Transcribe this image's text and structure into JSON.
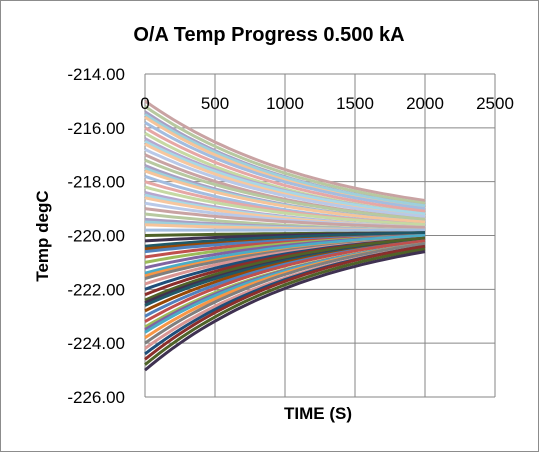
{
  "chart_data": {
    "type": "line",
    "title": "O/A Temp Progress 0.500 kA",
    "xlabel": "TIME (S)",
    "ylabel": "Temp degC",
    "xlim": [
      0,
      2500
    ],
    "ylim": [
      -226,
      -214
    ],
    "x_ticks": [
      0,
      500,
      1000,
      1500,
      2000,
      2500
    ],
    "x_tick_labels": [
      "0",
      "500",
      "1000",
      "1500",
      "2000",
      "2500"
    ],
    "y_ticks": [
      -214,
      -216,
      -218,
      -220,
      -222,
      -224,
      -226
    ],
    "y_tick_labels": [
      "-214.00",
      "-216.00",
      "-218.00",
      "-220.00",
      "-222.00",
      "-224.00",
      "-226.00"
    ],
    "x_axis_position": "top",
    "grid": {
      "horizontal": true,
      "vertical": true
    },
    "legend": "none",
    "series_count": 60,
    "x": [
      0,
      2000
    ],
    "series": [
      {
        "values": [
          -215.0,
          -218.7
        ]
      },
      {
        "values": [
          -215.2,
          -218.8
        ]
      },
      {
        "values": [
          -215.4,
          -218.9
        ]
      },
      {
        "values": [
          -215.6,
          -219.0
        ]
      },
      {
        "values": [
          -215.8,
          -219.0
        ]
      },
      {
        "values": [
          -216.0,
          -219.1
        ]
      },
      {
        "values": [
          -216.2,
          -219.2
        ]
      },
      {
        "values": [
          -216.4,
          -219.2
        ]
      },
      {
        "values": [
          -216.6,
          -219.3
        ]
      },
      {
        "values": [
          -216.8,
          -219.3
        ]
      },
      {
        "values": [
          -217.0,
          -219.4
        ]
      },
      {
        "values": [
          -217.2,
          -219.4
        ]
      },
      {
        "values": [
          -217.4,
          -219.5
        ]
      },
      {
        "values": [
          -217.6,
          -219.5
        ]
      },
      {
        "values": [
          -217.8,
          -219.6
        ]
      },
      {
        "values": [
          -218.0,
          -219.6
        ]
      },
      {
        "values": [
          -218.2,
          -219.6
        ]
      },
      {
        "values": [
          -218.4,
          -219.7
        ]
      },
      {
        "values": [
          -218.6,
          -219.7
        ]
      },
      {
        "values": [
          -218.8,
          -219.7
        ]
      },
      {
        "values": [
          -219.0,
          -219.7
        ]
      },
      {
        "values": [
          -219.2,
          -219.8
        ]
      },
      {
        "values": [
          -219.4,
          -219.8
        ]
      },
      {
        "values": [
          -219.6,
          -219.8
        ]
      },
      {
        "values": [
          -219.8,
          -219.8
        ]
      },
      {
        "values": [
          -220.0,
          -219.9
        ]
      },
      {
        "values": [
          -220.2,
          -219.9
        ]
      },
      {
        "values": [
          -220.4,
          -219.9
        ]
      },
      {
        "values": [
          -220.6,
          -220.0
        ]
      },
      {
        "values": [
          -220.8,
          -220.0
        ]
      },
      {
        "values": [
          -221.0,
          -220.0
        ]
      },
      {
        "values": [
          -221.2,
          -220.0
        ]
      },
      {
        "values": [
          -221.4,
          -220.0
        ]
      },
      {
        "values": [
          -221.6,
          -220.1
        ]
      },
      {
        "values": [
          -221.8,
          -220.1
        ]
      },
      {
        "values": [
          -222.0,
          -220.1
        ]
      },
      {
        "values": [
          -222.2,
          -220.1
        ]
      },
      {
        "values": [
          -222.4,
          -220.1
        ]
      },
      {
        "values": [
          -222.6,
          -220.2
        ]
      },
      {
        "values": [
          -222.8,
          -220.2
        ]
      },
      {
        "values": [
          -223.0,
          -220.2
        ]
      },
      {
        "values": [
          -223.2,
          -220.2
        ]
      },
      {
        "values": [
          -223.4,
          -220.3
        ]
      },
      {
        "values": [
          -223.6,
          -220.3
        ]
      },
      {
        "values": [
          -223.8,
          -220.3
        ]
      },
      {
        "values": [
          -224.0,
          -220.3
        ]
      },
      {
        "values": [
          -224.2,
          -220.4
        ]
      },
      {
        "values": [
          -224.4,
          -220.4
        ]
      },
      {
        "values": [
          -224.6,
          -220.4
        ]
      },
      {
        "values": [
          -224.8,
          -220.5
        ]
      },
      {
        "values": [
          -225.0,
          -220.6
        ]
      },
      {
        "values": [
          -215.5,
          -218.9
        ]
      },
      {
        "values": [
          -216.5,
          -219.2
        ]
      },
      {
        "values": [
          -217.5,
          -219.5
        ]
      },
      {
        "values": [
          -218.5,
          -219.7
        ]
      },
      {
        "values": [
          -219.5,
          -219.8
        ]
      },
      {
        "values": [
          -220.5,
          -220.0
        ]
      },
      {
        "values": [
          -221.5,
          -220.1
        ]
      },
      {
        "values": [
          -222.5,
          -220.2
        ]
      },
      {
        "values": [
          -223.5,
          -220.3
        ]
      }
    ],
    "colors": {
      "upper_palette": [
        "#c9a3a3",
        "#b7c9a0",
        "#a9a0c4",
        "#9ed0dc",
        "#f5c49a",
        "#a3bde0",
        "#e6a7a5",
        "#c5d9a3",
        "#b6a8cf",
        "#a8d8e6",
        "#f7c79f",
        "#b9c9e8"
      ],
      "lower_palette": [
        "#1f4e79",
        "#8b2e2b",
        "#4f6228",
        "#3f3151",
        "#205867",
        "#974806",
        "#4f81bd",
        "#c0504d",
        "#9bbb59",
        "#8064a2",
        "#4bacc6",
        "#f79646",
        "#7f7f7f",
        "#d99694"
      ],
      "grid": "#868686",
      "axis": "#868686"
    }
  }
}
